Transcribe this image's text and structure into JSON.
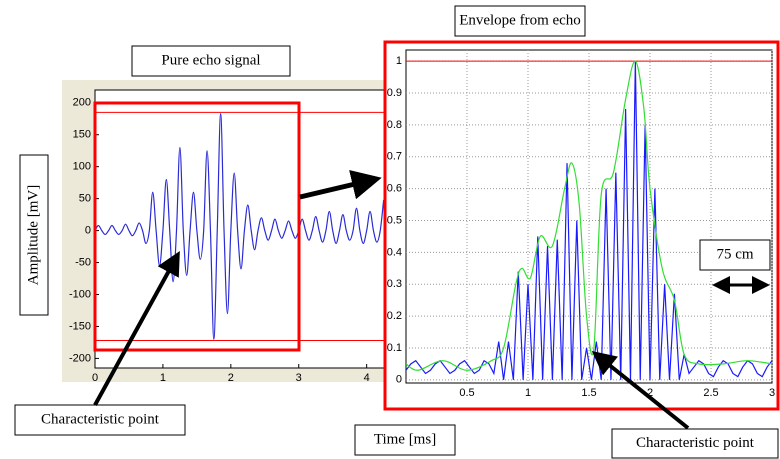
{
  "chart_data": [
    {
      "type": "line",
      "title": "Pure echo signal",
      "ylabel": "Amplitude [mV]",
      "annotations": [
        "Characteristic point"
      ],
      "xlim": [
        0,
        4.27
      ],
      "ylim": [
        -215,
        220
      ],
      "xticks": [
        0,
        1,
        2,
        3,
        4
      ],
      "yticks": [
        200,
        150,
        100,
        50,
        0,
        -50,
        -100,
        -150,
        -200
      ],
      "grid": false,
      "hlines": [
        185,
        -172
      ],
      "hline_color": "#ff0000",
      "series": [
        {
          "color": "#2b2bd6",
          "smooth": true,
          "x": [
            0,
            0.05,
            0.1,
            0.15,
            0.2,
            0.25,
            0.3,
            0.35,
            0.4,
            0.45,
            0.5,
            0.55,
            0.6,
            0.65,
            0.7,
            0.75,
            0.8,
            0.85,
            0.9,
            0.95,
            1,
            1.05,
            1.1,
            1.15,
            1.2,
            1.25,
            1.3,
            1.35,
            1.4,
            1.45,
            1.5,
            1.55,
            1.6,
            1.65,
            1.7,
            1.75,
            1.8,
            1.85,
            1.9,
            1.95,
            2,
            2.05,
            2.1,
            2.15,
            2.2,
            2.25,
            2.3,
            2.35,
            2.4,
            2.45,
            2.5,
            2.55,
            2.6,
            2.65,
            2.7,
            2.75,
            2.8,
            2.85,
            2.9,
            2.95,
            3,
            3.05,
            3.1,
            3.15,
            3.2,
            3.25,
            3.3,
            3.35,
            3.4,
            3.45,
            3.5,
            3.55,
            3.6,
            3.65,
            3.7,
            3.75,
            3.8,
            3.85,
            3.9,
            3.95,
            4,
            4.05,
            4.1,
            4.15,
            4.2,
            4.25
          ],
          "values": [
            0,
            8,
            0,
            -6,
            0,
            8,
            0,
            -6,
            0,
            10,
            0,
            -8,
            0,
            12,
            0,
            -20,
            0,
            60,
            0,
            -55,
            0,
            80,
            0,
            -80,
            0,
            130,
            0,
            -70,
            0,
            60,
            0,
            -45,
            0,
            125,
            0,
            -170,
            0,
            183,
            0,
            -130,
            0,
            90,
            0,
            -60,
            0,
            40,
            0,
            -30,
            0,
            20,
            0,
            -15,
            0,
            18,
            0,
            -12,
            0,
            15,
            0,
            -12,
            0,
            18,
            0,
            -15,
            0,
            22,
            0,
            -18,
            0,
            30,
            0,
            -20,
            0,
            25,
            0,
            -15,
            0,
            35,
            0,
            -20,
            0,
            30,
            0,
            -18,
            0,
            48
          ]
        }
      ]
    },
    {
      "type": "line",
      "title": "Envelope from echo",
      "xlabel": "Time [ms]",
      "annotations": [
        "75 cm",
        "Characteristic point"
      ],
      "xlim": [
        0,
        3
      ],
      "ylim": [
        -0.01,
        1.035
      ],
      "xticks": [
        0.5,
        1,
        1.5,
        2,
        2.5,
        3
      ],
      "yticks": [
        0,
        0.1,
        0.2,
        0.3,
        0.4,
        0.5,
        0.6,
        0.7,
        0.8,
        0.9,
        1
      ],
      "grid": true,
      "hlines": [
        1
      ],
      "hline_color": "#ff0000",
      "series": [
        {
          "color": "#1a1aff",
          "smooth": false,
          "x": [
            0,
            0.04,
            0.08,
            0.12,
            0.16,
            0.2,
            0.24,
            0.28,
            0.32,
            0.36,
            0.4,
            0.44,
            0.48,
            0.52,
            0.56,
            0.6,
            0.64,
            0.68,
            0.72,
            0.76,
            0.8,
            0.84,
            0.88,
            0.92,
            0.96,
            1,
            1.04,
            1.08,
            1.12,
            1.16,
            1.2,
            1.24,
            1.28,
            1.32,
            1.36,
            1.4,
            1.44,
            1.48,
            1.52,
            1.56,
            1.6,
            1.64,
            1.68,
            1.72,
            1.76,
            1.8,
            1.84,
            1.88,
            1.92,
            1.96,
            2,
            2.04,
            2.08,
            2.12,
            2.16,
            2.2,
            2.24,
            2.28,
            2.32,
            2.36,
            2.4,
            2.44,
            2.48,
            2.52,
            2.56,
            2.6,
            2.64,
            2.68,
            2.72,
            2.76,
            2.8,
            2.84,
            2.88,
            2.92,
            2.96,
            3
          ],
          "values": [
            0.03,
            0.05,
            0.06,
            0.04,
            0.02,
            0.03,
            0.05,
            0.06,
            0.04,
            0.02,
            0.03,
            0.05,
            0.06,
            0.04,
            0.02,
            0.03,
            0.06,
            0.05,
            0.02,
            0.12,
            0,
            0.12,
            0,
            0.34,
            0,
            0.3,
            0,
            0.45,
            0,
            0.42,
            0,
            0.44,
            0,
            0.68,
            0,
            0.5,
            0,
            0.1,
            0,
            0.12,
            0,
            0.6,
            0,
            0.65,
            0,
            0.85,
            0,
            1,
            0,
            0.8,
            0,
            0.6,
            0,
            0.3,
            0,
            0.27,
            0,
            0.08,
            0.02,
            0.04,
            0.06,
            0.05,
            0.02,
            0.01,
            0.04,
            0.06,
            0.05,
            0.02,
            0.01,
            0.04,
            0.06,
            0.05,
            0.02,
            0.01,
            0.04,
            0.06
          ]
        },
        {
          "color": "#33dd33",
          "smooth": true,
          "x": [
            0,
            0.1,
            0.3,
            0.5,
            0.7,
            0.8,
            0.9,
            0.95,
            1.02,
            1.1,
            1.2,
            1.3,
            1.36,
            1.42,
            1.48,
            1.54,
            1.6,
            1.7,
            1.8,
            1.88,
            1.95,
            2,
            2.1,
            2.2,
            2.28,
            2.4,
            2.6,
            2.8,
            3
          ],
          "values": [
            0.05,
            0.03,
            0.06,
            0.03,
            0.06,
            0.1,
            0.3,
            0.35,
            0.32,
            0.45,
            0.42,
            0.6,
            0.68,
            0.55,
            0.2,
            0.1,
            0.58,
            0.65,
            0.88,
            1,
            0.85,
            0.6,
            0.35,
            0.25,
            0.08,
            0.05,
            0.05,
            0.06,
            0.05
          ]
        }
      ]
    }
  ]
}
